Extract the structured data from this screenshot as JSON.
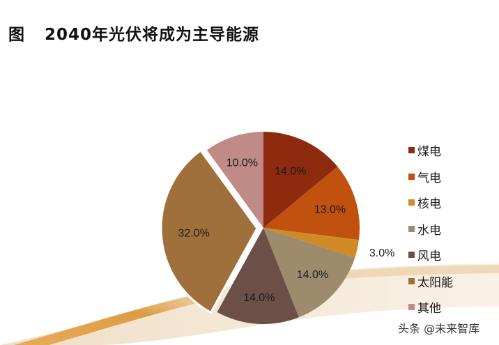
{
  "title": {
    "figure_label": "图",
    "text": "2040年光伏将成为主导能源"
  },
  "chart_data": {
    "type": "pie",
    "title": "2040年光伏将成为主导能源",
    "categories": [
      "煤电",
      "气电",
      "核电",
      "水电",
      "风电",
      "太阳能",
      "其他"
    ],
    "values": [
      14.0,
      13.0,
      3.0,
      14.0,
      14.0,
      32.0,
      10.0
    ],
    "labels": [
      "14.0%",
      "13.0%",
      "3.0%",
      "14.0%",
      "14.0%",
      "32.0%",
      "10.0%"
    ],
    "colors": [
      "#8E2A0E",
      "#C0510F",
      "#D08A26",
      "#9E8B6E",
      "#6C5048",
      "#A0703C",
      "#C08A86"
    ],
    "exploded": [
      "太阳能"
    ],
    "start_angle": "12 o'clock, clockwise",
    "legend_position": "right"
  },
  "legend": {
    "items": [
      {
        "label": "煤电",
        "color": "#8E2A0E"
      },
      {
        "label": "气电",
        "color": "#C0510F"
      },
      {
        "label": "核电",
        "color": "#D08A26"
      },
      {
        "label": "水电",
        "color": "#9E8B6E"
      },
      {
        "label": "风电",
        "color": "#6C5048"
      },
      {
        "label": "太阳能",
        "color": "#A0703C"
      },
      {
        "label": "其他",
        "color": "#C08A86"
      }
    ]
  },
  "watermark": "头条 @未来智库"
}
